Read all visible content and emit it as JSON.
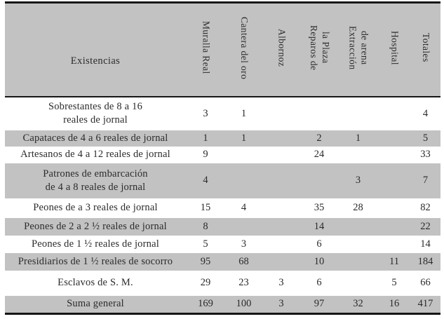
{
  "table": {
    "row_header_label": "Existencias",
    "columns": [
      "Muralla Real",
      "Cantera del oro",
      "Albornoz",
      "Reparos de\nla Plaza",
      "Extracción\nde arena",
      "Hospital",
      "Totales"
    ],
    "rows": [
      {
        "label": "Sobrestantes de 8 a 16\nreales de jornal",
        "values": [
          "3",
          "1",
          "",
          "",
          "",
          "",
          "4"
        ],
        "shade": false
      },
      {
        "label": "Capataces de 4 a 6 reales de jornal",
        "values": [
          "1",
          "1",
          "",
          "2",
          "1",
          "",
          "5"
        ],
        "shade": true
      },
      {
        "label": "Artesanos de 4 a 12 reales de jornal",
        "values": [
          "9",
          "",
          "",
          "24",
          "",
          "",
          "33"
        ],
        "shade": false
      },
      {
        "label": "Patrones de embarcación\nde 4 a 8 reales de jornal",
        "values": [
          "4",
          "",
          "",
          "",
          "3",
          "",
          "7"
        ],
        "shade": true
      },
      {
        "label": "Peones de a 3 reales de jornal",
        "values": [
          "15",
          "4",
          "",
          "35",
          "28",
          "",
          "82"
        ],
        "shade": false
      },
      {
        "label": "Peones de 2 a 2 ½ reales de jornal",
        "values": [
          "8",
          "",
          "",
          "14",
          "",
          "",
          "22"
        ],
        "shade": true
      },
      {
        "label": "Peones de 1 ½ reales de jornal",
        "values": [
          "5",
          "3",
          "",
          "6",
          "",
          "",
          "14"
        ],
        "shade": false
      },
      {
        "label": "Presidiarios de 1 ½ reales de socorro",
        "values": [
          "95",
          "68",
          "",
          "10",
          "",
          "11",
          "184"
        ],
        "shade": true
      },
      {
        "label": "Esclavos de S. M.",
        "values": [
          "29",
          "23",
          "3",
          "6",
          "",
          "5",
          "66"
        ],
        "shade": false
      },
      {
        "label": "Suma general",
        "values": [
          "169",
          "100",
          "3",
          "97",
          "32",
          "16",
          "417"
        ],
        "shade": true
      }
    ],
    "colors": {
      "shade_gray": "#c2c2c2",
      "border_black": "#161616",
      "text": "#2b2b2b"
    }
  },
  "chart_data": {
    "type": "table",
    "title": "",
    "row_header": "Existencias",
    "categories": [
      "Muralla Real",
      "Cantera del oro",
      "Albornoz",
      "Reparos de la Plaza",
      "Extracción de arena",
      "Hospital",
      "Totales"
    ],
    "series": [
      {
        "name": "Sobrestantes de 8 a 16 reales de jornal",
        "values": [
          3,
          1,
          null,
          null,
          null,
          null,
          4
        ]
      },
      {
        "name": "Capataces de 4 a 6 reales de jornal",
        "values": [
          1,
          1,
          null,
          2,
          1,
          null,
          5
        ]
      },
      {
        "name": "Artesanos de 4 a 12 reales de jornal",
        "values": [
          9,
          null,
          null,
          24,
          null,
          null,
          33
        ]
      },
      {
        "name": "Patrones de embarcación de 4 a 8 reales de jornal",
        "values": [
          4,
          null,
          null,
          null,
          3,
          null,
          7
        ]
      },
      {
        "name": "Peones de a 3 reales de jornal",
        "values": [
          15,
          4,
          null,
          35,
          28,
          null,
          82
        ]
      },
      {
        "name": "Peones de 2 a 2 ½ reales de jornal",
        "values": [
          8,
          null,
          null,
          14,
          null,
          null,
          22
        ]
      },
      {
        "name": "Peones de 1 ½ reales de jornal",
        "values": [
          5,
          3,
          null,
          6,
          null,
          null,
          14
        ]
      },
      {
        "name": "Presidiarios de 1 ½ reales de socorro",
        "values": [
          95,
          68,
          null,
          10,
          null,
          11,
          184
        ]
      },
      {
        "name": "Esclavos de S. M.",
        "values": [
          29,
          23,
          3,
          6,
          null,
          5,
          66
        ]
      },
      {
        "name": "Suma general",
        "values": [
          169,
          100,
          3,
          97,
          32,
          16,
          417
        ]
      }
    ]
  }
}
